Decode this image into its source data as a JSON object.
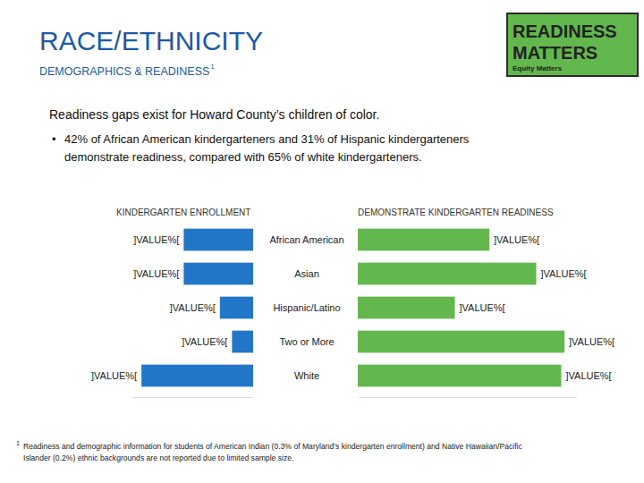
{
  "header": {
    "title": "RACE/ETHNICITY",
    "subtitle": "DEMOGRAPHICS & READINESS",
    "subtitle_note": "1"
  },
  "logo": {
    "line1": "READINESS",
    "line2": "MATTERS",
    "line3": "Equity Matters"
  },
  "summary": {
    "headline": "Readiness gaps exist for Howard County’s children of color.",
    "bullet": "•",
    "bullet_lines": [
      "42% of African American kindergarteners and 31% of Hispanic kindergarteners",
      "demonstrate readiness, compared with 65% of white kindergarteners."
    ]
  },
  "chart_data": [
    {
      "type": "bar",
      "orientation": "horizontal",
      "title": "KINDERGARTEN ENROLLMENT",
      "categories": [
        null,
        null,
        null,
        null,
        null
      ],
      "values": [
        23,
        23,
        11,
        7,
        37
      ],
      "value_labels": [
        "]VALUE%[",
        "]VALUE%[",
        "]VALUE%[",
        "]VALUE%[",
        "]VALUE%["
      ],
      "data_labels": true,
      "color": "#2176c7",
      "xlim": [
        0,
        40
      ],
      "tick_labels": false
    },
    {
      "type": "bar",
      "orientation": "horizontal",
      "title": "DEMONSTRATE KINDERGARTEN READINESS",
      "categories": [
        "African American",
        "Asian",
        "Hispanic/Latino",
        "Two or More",
        "White"
      ],
      "values": [
        42,
        57,
        31,
        66,
        65
      ],
      "value_labels": [
        "]VALUE%[",
        "]VALUE%[",
        "]VALUE%[",
        "]VALUE%[",
        "]VALUE%["
      ],
      "data_labels": true,
      "color": "#62b84d",
      "xlim": [
        0,
        70
      ],
      "tick_labels": false
    }
  ],
  "footnote": {
    "marker": "1",
    "lines": [
      "Readiness and demographic information for students of American Indian (0.3% of Maryland’s kindergarten enrollment) and Native Hawaiian/Pacific",
      "Islander (0.2%) ethnic backgrounds are not reported due to limited sample size."
    ]
  }
}
